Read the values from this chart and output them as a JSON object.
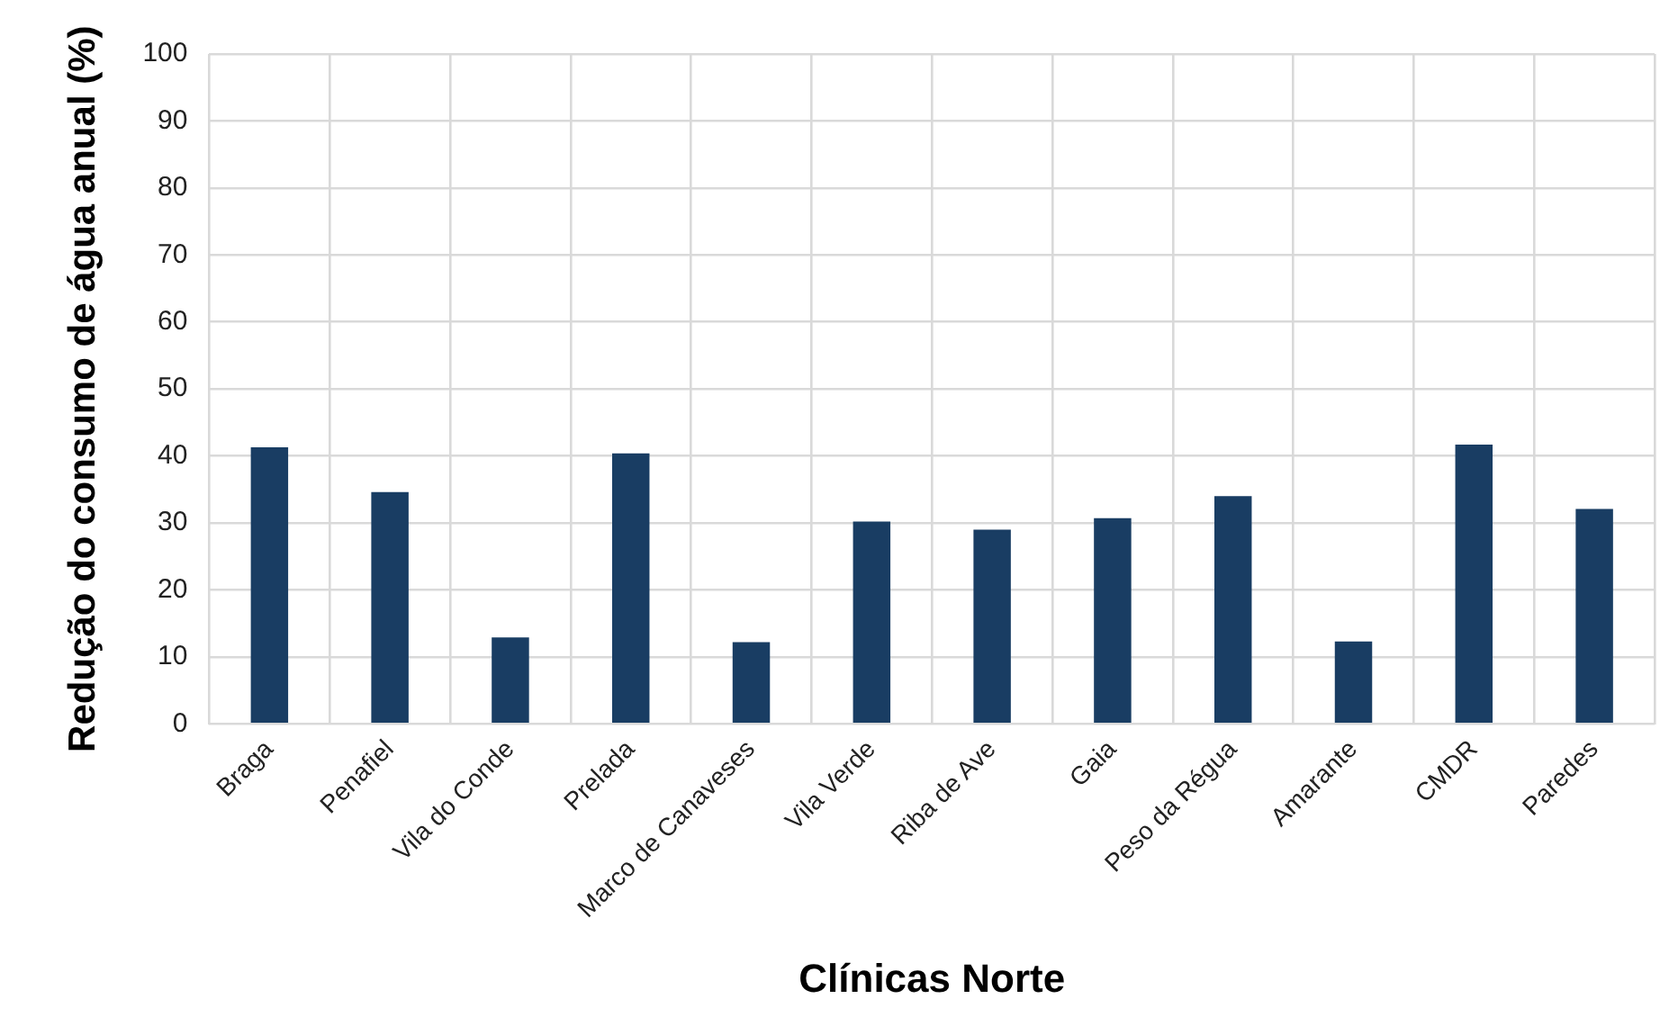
{
  "chart_data": {
    "type": "bar",
    "xlabel": "Clínicas Norte",
    "ylabel": "Redução do consumo de água anual (%)",
    "categories": [
      "Braga",
      "Penafiel",
      "Vila do Conde",
      "Prelada",
      "Marco de Canaveses",
      "Vila Verde",
      "Riba de Ave",
      "Gaia",
      "Peso da Régua",
      "Amarante",
      "CMDR",
      "Paredes"
    ],
    "values": [
      41.3,
      34.6,
      12.9,
      40.4,
      12.2,
      30.2,
      29.0,
      30.7,
      34.0,
      12.3,
      41.7,
      32.1
    ],
    "color": "#193d63",
    "ylim": [
      0,
      100
    ],
    "yticks": [
      0,
      10,
      20,
      30,
      40,
      50,
      60,
      70,
      80,
      90,
      100
    ],
    "grid": true
  }
}
